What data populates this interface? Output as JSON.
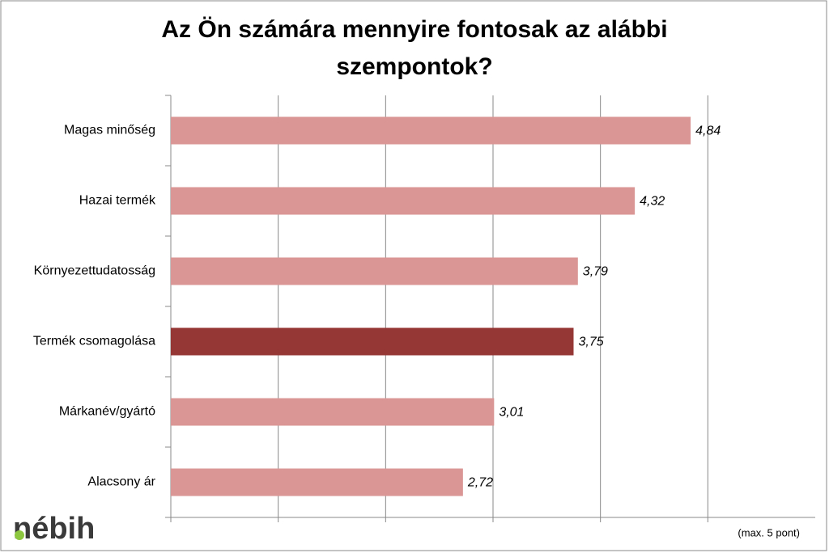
{
  "chart_data": {
    "type": "bar",
    "orientation": "horizontal",
    "title": "Az Ön számára mennyire fontosak az alábbi szempontok?",
    "categories": [
      "Magas minőség",
      "Hazai termék",
      "Környezettudatosság",
      "Termék csomagolása",
      "Márkanév/gyártó",
      "Alacsony ár"
    ],
    "values": [
      4.84,
      4.32,
      3.79,
      3.75,
      3.01,
      2.72
    ],
    "value_labels": [
      "4,84",
      "4,32",
      "3,79",
      "3,75",
      "3,01",
      "2,72"
    ],
    "colors": [
      "#d99694",
      "#d99694",
      "#d99694",
      "#953735",
      "#d99694",
      "#d99694"
    ],
    "xlim": [
      0,
      6
    ],
    "xgrid": [
      1,
      2,
      3,
      4,
      5
    ],
    "grid": true,
    "note": "(max. 5 pont)",
    "logo": "nébih"
  }
}
